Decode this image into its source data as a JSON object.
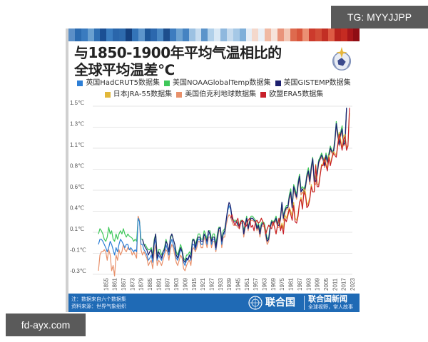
{
  "watermarks": {
    "top_right": "TG: MYYJJPP",
    "bottom_left": "fd-ayx.com"
  },
  "header": {
    "title_line1": "与1850-1900年平均气温相比的",
    "title_line2": "全球平均温差℃",
    "logo": "wmo-emblem-icon",
    "warming_stripes": [
      "#5b8fc7",
      "#2b6bb0",
      "#3a7bbf",
      "#6aa0d0",
      "#2f6fb3",
      "#1b4f94",
      "#3b7dc0",
      "#2a66ab",
      "#2d6aad",
      "#14407e",
      "#3374b8",
      "#5d95cb",
      "#1e5799",
      "#2c68ae",
      "#4a88c4",
      "#1d4e8d",
      "#3d7cbf",
      "#6ea3d2",
      "#4583c2",
      "#9cc1e2",
      "#c7dcef",
      "#5c94ca",
      "#b1d0ea",
      "#d9e8f5",
      "#8fb8de",
      "#c6dbee",
      "#a5c8e6",
      "#7fafd9",
      "#e7eef6",
      "#f4d8cc",
      "#eaf0f7",
      "#f0b9a3",
      "#f6e3da",
      "#e9937a",
      "#f3c6b4",
      "#de6a4e",
      "#d8543b",
      "#eb8f73",
      "#cc3a2c",
      "#d24c37",
      "#c22f24",
      "#dd5b44",
      "#b8231d",
      "#c52b22",
      "#a8161a",
      "#8f0d14"
    ]
  },
  "legend": [
    {
      "label": "英国HadCRUT5数据集",
      "color": "#2e7fd6"
    },
    {
      "label": "美国NOAAGlobalTemp数据集",
      "color": "#3fc85a"
    },
    {
      "label": "美国GISTEMP数据集",
      "color": "#1c1f6e"
    },
    {
      "label": "日本JRA-55数据集",
      "color": "#e2b83a"
    },
    {
      "label": "美国伯克利地球数据集",
      "color": "#e8906a"
    },
    {
      "label": "欧盟ERA5数据集",
      "color": "#c8202a"
    }
  ],
  "footer": {
    "note": "注：数据来自六个数据集",
    "source": "资料来源：世界气象组织",
    "org_name": "联合国",
    "news_title": "联合国新闻",
    "slogan": "全球视野，常人故事"
  },
  "chart_data": {
    "type": "line",
    "title": "与1850-1900年平均气温相比的全球平均温差℃",
    "xlabel": "",
    "ylabel": "",
    "y_tick_labels": [
      "1.5℃",
      "1.3℃",
      "1.1℃",
      "0.8℃",
      "0.6℃",
      "0.4℃",
      "0.1℃",
      "-0.1℃",
      "-0.3℃"
    ],
    "y_tick_values": [
      1.5,
      1.3,
      1.1,
      0.8,
      0.6,
      0.4,
      0.1,
      -0.1,
      -0.3
    ],
    "x_tick_labels": [
      "1855",
      "1861",
      "1867",
      "1873",
      "1879",
      "1885",
      "1891",
      "1897",
      "1903",
      "1909",
      "1915",
      "1921",
      "1927",
      "1933",
      "1939",
      "1945",
      "1951",
      "1957",
      "1963",
      "1969",
      "1975",
      "1981",
      "1987",
      "1993",
      "1999",
      "2005",
      "2011",
      "2017",
      "2023"
    ],
    "xlim": [
      1850,
      2023
    ],
    "ylim": [
      -0.35,
      1.5
    ],
    "grid": "horizontal",
    "legend_position": "top",
    "series": [
      {
        "name": "英国HadCRUT5数据集",
        "start": 1850,
        "values": [
          -0.05,
          0.0,
          0.0,
          -0.02,
          -0.05,
          -0.08,
          -0.12,
          -0.08,
          -0.02,
          -0.05,
          -0.1,
          -0.15,
          -0.08,
          -0.12,
          -0.05,
          0.0,
          -0.02,
          -0.05,
          -0.08,
          -0.05,
          -0.05,
          -0.1,
          -0.08,
          -0.1,
          -0.12,
          -0.1,
          -0.12,
          0.25,
          0.2,
          -0.05,
          -0.05,
          -0.1,
          -0.12,
          -0.15,
          -0.2,
          -0.18,
          -0.15,
          -0.22,
          -0.05,
          0.0,
          -0.2,
          -0.15,
          -0.18,
          -0.2,
          -0.15,
          -0.12,
          -0.05,
          -0.1,
          -0.15,
          -0.05,
          0.0,
          -0.05,
          -0.1,
          -0.18,
          -0.2,
          -0.15,
          -0.1,
          -0.12,
          -0.22,
          -0.25,
          -0.2,
          -0.18,
          -0.15,
          -0.2,
          -0.05,
          -0.05,
          -0.1,
          -0.05,
          0.0,
          0.0,
          -0.05,
          -0.05,
          0.05,
          0.02,
          -0.05,
          0.05,
          0.05,
          -0.05,
          0.0,
          0.0,
          -0.1,
          0.0,
          0.1,
          0.1,
          -0.05,
          0.05,
          0.05,
          0.2,
          0.35,
          0.42,
          0.38,
          0.25,
          0.2,
          0.2,
          0.2,
          0.15,
          0.12,
          0.2,
          0.2,
          0.05,
          0.15,
          0.25,
          0.1,
          0.2,
          0.25,
          0.25,
          0.22,
          0.2,
          0.1,
          0.15,
          0.05,
          0.15,
          0.18,
          0.15,
          0.05,
          -0.02,
          0.0,
          0.12,
          0.2,
          0.18,
          0.2,
          0.25,
          0.15,
          0.15,
          0.25,
          0.45,
          0.25,
          0.35,
          0.4,
          0.4,
          0.5,
          0.55,
          0.4,
          0.6,
          0.55,
          0.5,
          0.62,
          0.7,
          0.55,
          0.58,
          0.55,
          0.6,
          0.7,
          0.75,
          0.65,
          0.78,
          0.9,
          0.65,
          0.65,
          0.72,
          0.85,
          0.9,
          0.95,
          0.9,
          0.8,
          0.95,
          0.85,
          0.95,
          1.05,
          1.0,
          0.98,
          1.12,
          1.3,
          1.2,
          1.1,
          1.2,
          1.25,
          1.1,
          1.12,
          1.45
        ]
      },
      {
        "name": "美国NOAAGlobalTemp数据集",
        "start": 1850,
        "values": [
          0.05,
          0.1,
          0.08,
          0.05,
          0.0,
          -0.02,
          0.02,
          0.12,
          0.05,
          0.08,
          0.0,
          -0.02,
          0.05,
          0.0,
          0.05,
          0.08,
          0.05,
          0.1,
          0.05,
          0.02,
          0.05,
          0.03,
          0.02,
          0.01,
          -0.02,
          0.0,
          -0.02,
          0.25,
          0.2,
          0.0,
          0.0,
          -0.05,
          -0.05,
          -0.08,
          -0.1,
          -0.1,
          -0.08,
          -0.15,
          0.0,
          0.05,
          -0.15,
          -0.1,
          -0.1,
          -0.15,
          -0.12,
          -0.08,
          0.0,
          -0.05,
          -0.12,
          0.0,
          0.05,
          0.0,
          -0.05,
          -0.12,
          -0.15,
          -0.1,
          -0.05,
          -0.1,
          -0.18,
          -0.2,
          -0.15,
          -0.15,
          -0.12,
          -0.15,
          0.0,
          0.0,
          -0.05,
          0.0,
          0.05,
          0.05,
          0.0,
          0.0,
          0.08,
          0.05,
          0.0,
          0.08,
          0.08,
          0.0,
          0.05,
          0.05,
          -0.05,
          0.05,
          0.12,
          0.12,
          0.0,
          0.08,
          0.1,
          0.22,
          0.35,
          0.42,
          0.38,
          0.28,
          0.22,
          0.22,
          0.22,
          0.18,
          0.15,
          0.22,
          0.22,
          0.08,
          0.18,
          0.28,
          0.12,
          0.22,
          0.28,
          0.28,
          0.25,
          0.22,
          0.12,
          0.18,
          0.08,
          0.18,
          0.2,
          0.18,
          0.08,
          0.0,
          0.02,
          0.15,
          0.22,
          0.2,
          0.22,
          0.28,
          0.18,
          0.18,
          0.28,
          0.45,
          0.28,
          0.38,
          0.42,
          0.42,
          0.52,
          0.58,
          0.42,
          0.62,
          0.58,
          0.52,
          0.65,
          0.72,
          0.58,
          0.6,
          0.58,
          0.62,
          0.72,
          0.78,
          0.68,
          0.8,
          0.92,
          0.68,
          0.68,
          0.75,
          0.88,
          0.92,
          0.98,
          0.92,
          0.82,
          0.98,
          0.88,
          0.98,
          1.08,
          1.02,
          1.0,
          1.15,
          1.32,
          1.22,
          1.12,
          1.22,
          1.28,
          1.12,
          1.15,
          1.45
        ]
      },
      {
        "name": "美国GISTEMP数据集",
        "start": 1880,
        "values": [
          0.0,
          -0.05,
          -0.08,
          -0.1,
          -0.15,
          -0.12,
          -0.1,
          -0.18,
          -0.02,
          0.05,
          -0.18,
          -0.12,
          -0.15,
          -0.18,
          -0.12,
          -0.1,
          -0.02,
          -0.05,
          -0.12,
          0.02,
          0.05,
          0.0,
          -0.05,
          -0.15,
          -0.18,
          -0.12,
          -0.08,
          -0.12,
          -0.2,
          -0.22,
          -0.18,
          -0.2,
          -0.15,
          -0.18,
          -0.02,
          0.0,
          -0.08,
          -0.02,
          0.02,
          0.02,
          -0.02,
          -0.02,
          0.05,
          0.02,
          -0.02,
          0.08,
          0.05,
          -0.02,
          0.02,
          0.02,
          -0.08,
          0.02,
          0.1,
          0.12,
          -0.02,
          0.05,
          0.08,
          0.22,
          0.38,
          0.45,
          0.42,
          0.25,
          0.2,
          0.2,
          0.2,
          0.15,
          0.15,
          0.2,
          0.2,
          0.05,
          0.15,
          0.25,
          0.1,
          0.2,
          0.25,
          0.25,
          0.22,
          0.2,
          0.1,
          0.15,
          0.05,
          0.15,
          0.18,
          0.15,
          0.05,
          -0.02,
          0.0,
          0.12,
          0.2,
          0.18,
          0.2,
          0.25,
          0.15,
          0.15,
          0.25,
          0.45,
          0.25,
          0.35,
          0.4,
          0.4,
          0.5,
          0.55,
          0.4,
          0.6,
          0.55,
          0.5,
          0.62,
          0.7,
          0.55,
          0.58,
          0.55,
          0.6,
          0.7,
          0.75,
          0.65,
          0.78,
          0.9,
          0.65,
          0.65,
          0.72,
          0.85,
          0.9,
          0.95,
          0.9,
          0.8,
          0.95,
          0.85,
          0.95,
          1.05,
          1.0,
          0.98,
          1.12,
          1.3,
          1.2,
          1.1,
          1.2,
          1.25,
          1.1,
          1.12,
          1.45
        ]
      },
      {
        "name": "日本JRA-55数据集",
        "start": 1958,
        "values": [
          0.2,
          0.18,
          0.2,
          0.25,
          0.2,
          0.15,
          0.05,
          0.1,
          0.15,
          0.12,
          0.1,
          0.2,
          0.12,
          0.05,
          0.15,
          0.25,
          0.1,
          0.18,
          0.1,
          0.3,
          0.25,
          0.32,
          0.4,
          0.35,
          0.28,
          0.45,
          0.25,
          0.22,
          0.32,
          0.45,
          0.5,
          0.4,
          0.58,
          0.55,
          0.42,
          0.45,
          0.5,
          0.62,
          0.55,
          0.55,
          0.82,
          0.62,
          0.62,
          0.72,
          0.82,
          0.82,
          0.92,
          0.82,
          0.78,
          0.95,
          0.82,
          0.92,
          1.0,
          0.98,
          0.95,
          1.1,
          1.22,
          1.15,
          1.05,
          1.18,
          1.2,
          1.05,
          1.1,
          1.4
        ]
      },
      {
        "name": "美国伯克利地球数据集",
        "start": 1850,
        "values": [
          -0.3,
          -0.15,
          -0.12,
          -0.12,
          -0.1,
          -0.12,
          -0.2,
          -0.1,
          -0.15,
          -0.3,
          -0.25,
          -0.35,
          -0.15,
          -0.2,
          -0.1,
          -0.15,
          -0.12,
          -0.05,
          -0.1,
          -0.12,
          -0.08,
          -0.1,
          -0.1,
          -0.15,
          -0.12,
          -0.15,
          -0.18,
          0.28,
          0.22,
          -0.1,
          -0.15,
          -0.12,
          -0.15,
          -0.18,
          -0.25,
          -0.22,
          -0.2,
          -0.28,
          -0.12,
          -0.05,
          -0.25,
          -0.2,
          -0.22,
          -0.25,
          -0.2,
          -0.15,
          -0.1,
          -0.12,
          -0.2,
          -0.1,
          -0.05,
          -0.08,
          -0.15,
          -0.22,
          -0.25,
          -0.2,
          -0.15,
          -0.18,
          -0.28,
          -0.3,
          -0.25,
          -0.22,
          -0.2,
          -0.25,
          -0.1,
          -0.08,
          -0.12,
          -0.08,
          -0.02,
          -0.02,
          -0.08,
          -0.08,
          0.02,
          -0.02,
          -0.08,
          0.02,
          0.02,
          -0.08,
          -0.02,
          -0.02,
          -0.12,
          -0.02,
          0.08,
          0.08,
          -0.08,
          0.02,
          0.02,
          0.15,
          0.25,
          0.3,
          0.28,
          0.2,
          0.15,
          0.15,
          0.15,
          0.12,
          0.1,
          0.18,
          0.18,
          0.02,
          0.12,
          0.22,
          0.08,
          0.18,
          0.22,
          0.22,
          0.2,
          0.18,
          0.08,
          0.12,
          0.02,
          0.12,
          0.15,
          0.12,
          0.02,
          -0.05,
          -0.02,
          0.1,
          0.18,
          0.15,
          0.18,
          0.22,
          0.12,
          0.12,
          0.22,
          0.42,
          0.22,
          0.32,
          0.38,
          0.38,
          0.48,
          0.52,
          0.38,
          0.58,
          0.52,
          0.48,
          0.6,
          0.68,
          0.52,
          0.55,
          0.52,
          0.58,
          0.68,
          0.72,
          0.62,
          0.75,
          0.88,
          0.62,
          0.62,
          0.7,
          0.82,
          0.88,
          0.92,
          0.88,
          0.78,
          0.92,
          0.82,
          0.92,
          1.02,
          0.98,
          0.95,
          1.1,
          1.28,
          1.18,
          1.08,
          1.18,
          1.22,
          1.08,
          1.1,
          1.42
        ]
      },
      {
        "name": "欧盟ERA5数据集",
        "start": 1940,
        "values": [
          0.25,
          0.3,
          0.2,
          0.15,
          0.2,
          0.25,
          0.1,
          0.2,
          0.22,
          0.2,
          0.12,
          0.15,
          0.22,
          0.25,
          0.12,
          0.15,
          0.08,
          0.2,
          0.22,
          0.18,
          0.2,
          0.25,
          0.2,
          0.15,
          0.05,
          0.1,
          0.15,
          0.12,
          0.1,
          0.2,
          0.12,
          0.05,
          0.15,
          0.25,
          0.08,
          0.15,
          0.05,
          0.25,
          0.2,
          0.28,
          0.38,
          0.3,
          0.22,
          0.42,
          0.2,
          0.18,
          0.28,
          0.45,
          0.48,
          0.38,
          0.55,
          0.52,
          0.4,
          0.42,
          0.48,
          0.6,
          0.55,
          0.55,
          0.8,
          0.6,
          0.6,
          0.7,
          0.8,
          0.8,
          0.9,
          0.8,
          0.75,
          0.92,
          0.8,
          0.9,
          0.98,
          0.95,
          0.92,
          1.08,
          1.2,
          1.12,
          1.02,
          1.15,
          1.18,
          1.02,
          1.08,
          1.45
        ]
      }
    ]
  }
}
